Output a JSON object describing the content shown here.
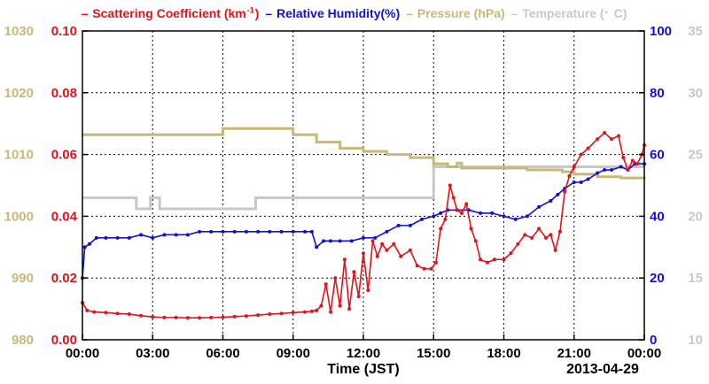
{
  "legend": [
    {
      "label_main": "Scattering Coefficient (km",
      "label_sup": "-1",
      "label_end": ")",
      "color": "#e8101a"
    },
    {
      "label_main": "Relative Humidity(%)",
      "label_sup": "",
      "label_end": "",
      "color": "#1010d8"
    },
    {
      "label_main": "Pressure (hPa)",
      "label_sup": "",
      "label_end": "",
      "color": "#c8b878"
    },
    {
      "label_main": "Temperature (",
      "label_sup": "。",
      "label_end": "C)",
      "color": "#c8c8c8"
    }
  ],
  "colors": {
    "scattering": "#e8101a",
    "humidity": "#1010d8",
    "pressure": "#c8b878",
    "temperature": "#c8c8c8"
  },
  "chart_data": {
    "type": "line",
    "xlabel": "Time (JST)",
    "date_label": "2013-04-29",
    "x_tick_labels": [
      "00:00",
      "03:00",
      "06:00",
      "09:00",
      "12:00",
      "15:00",
      "18:00",
      "21:00",
      "00:00"
    ],
    "xlim_hours": [
      0,
      24
    ],
    "grid": true,
    "axes": {
      "pressure": {
        "ylim": [
          980,
          1030
        ],
        "ticks": [
          "980",
          "990",
          "1000",
          "1010",
          "1020",
          "1030"
        ],
        "side": "left-outer"
      },
      "scattering": {
        "ylim": [
          0,
          0.1
        ],
        "ticks": [
          "0.00",
          "0.02",
          "0.04",
          "0.06",
          "0.08",
          "0.10"
        ],
        "side": "left-inner"
      },
      "humidity": {
        "ylim": [
          0,
          100
        ],
        "ticks": [
          "0",
          "20",
          "40",
          "60",
          "80",
          "100"
        ],
        "side": "right-inner"
      },
      "temperature": {
        "ylim": [
          10,
          35
        ],
        "ticks": [
          "10",
          "15",
          "20",
          "25",
          "30",
          "35"
        ],
        "side": "right-outer"
      }
    },
    "series": [
      {
        "name": "Scattering Coefficient (km-1)",
        "axis": "scattering",
        "style": "line-markers",
        "x": [
          0,
          0.2,
          0.5,
          1,
          1.5,
          2,
          2.5,
          3,
          3.5,
          4,
          4.5,
          5,
          5.5,
          6,
          6.5,
          7,
          7.5,
          8,
          8.5,
          9,
          9.5,
          9.8,
          10,
          10.2,
          10.4,
          10.6,
          10.8,
          11,
          11.2,
          11.4,
          11.6,
          11.8,
          12,
          12.2,
          12.4,
          12.6,
          12.8,
          13,
          13.3,
          13.6,
          14,
          14.3,
          14.6,
          14.9,
          15.1,
          15.3,
          15.5,
          15.7,
          15.85,
          16,
          16.2,
          16.4,
          16.6,
          16.8,
          17,
          17.3,
          17.6,
          18,
          18.3,
          18.6,
          18.9,
          19.2,
          19.5,
          19.8,
          20,
          20.2,
          20.4,
          20.6,
          20.8,
          21,
          21.3,
          21.6,
          22,
          22.3,
          22.6,
          22.9,
          23.1,
          23.3,
          23.5,
          23.7,
          23.9,
          24
        ],
        "y": [
          0.012,
          0.0095,
          0.009,
          0.0088,
          0.0085,
          0.0083,
          0.0078,
          0.0074,
          0.0072,
          0.0072,
          0.0071,
          0.0071,
          0.0072,
          0.0073,
          0.0075,
          0.0077,
          0.008,
          0.0083,
          0.0085,
          0.0088,
          0.009,
          0.0092,
          0.0095,
          0.011,
          0.018,
          0.009,
          0.02,
          0.011,
          0.026,
          0.01,
          0.022,
          0.014,
          0.028,
          0.016,
          0.032,
          0.027,
          0.031,
          0.029,
          0.031,
          0.027,
          0.029,
          0.024,
          0.023,
          0.023,
          0.025,
          0.036,
          0.039,
          0.05,
          0.046,
          0.042,
          0.041,
          0.044,
          0.036,
          0.032,
          0.026,
          0.025,
          0.026,
          0.026,
          0.028,
          0.031,
          0.034,
          0.033,
          0.036,
          0.033,
          0.034,
          0.029,
          0.035,
          0.048,
          0.053,
          0.056,
          0.06,
          0.062,
          0.065,
          0.067,
          0.065,
          0.066,
          0.059,
          0.055,
          0.058,
          0.057,
          0.06,
          0.063
        ]
      },
      {
        "name": "Relative Humidity(%)",
        "axis": "humidity",
        "style": "line-markers",
        "x": [
          0,
          0.1,
          0.3,
          0.6,
          1,
          1.5,
          2,
          2.5,
          3,
          3.5,
          4,
          4.5,
          5,
          5.5,
          6,
          6.5,
          7,
          7.5,
          8,
          8.5,
          9,
          9.5,
          9.8,
          10,
          10.3,
          10.6,
          11,
          11.5,
          12,
          12.5,
          13,
          13.5,
          14,
          14.5,
          15,
          15.3,
          15.6,
          16,
          16.5,
          17,
          17.5,
          18,
          18.5,
          19,
          19.5,
          20,
          20.3,
          20.6,
          21,
          21.3,
          21.6,
          22,
          22.3,
          22.6,
          23,
          23.3,
          23.6,
          24
        ],
        "y": [
          20,
          30,
          31,
          33,
          33,
          33,
          33,
          34,
          33,
          34,
          34,
          34,
          35,
          35,
          35,
          35,
          35,
          35,
          35,
          35,
          35,
          35,
          35,
          30,
          32,
          32,
          32,
          32,
          33,
          33,
          35,
          37,
          37,
          39,
          40,
          41,
          42,
          42,
          42,
          41,
          41,
          40,
          39,
          40,
          43,
          45,
          47,
          49,
          51,
          51,
          52,
          54,
          55,
          55,
          56,
          55,
          57,
          57
        ]
      },
      {
        "name": "Pressure (hPa)",
        "axis": "pressure",
        "style": "step",
        "x": [
          0,
          1,
          2,
          3,
          4,
          5,
          5.9,
          6,
          7,
          8,
          9,
          10,
          11,
          12,
          13,
          14,
          15,
          15.6,
          16,
          16.2,
          17,
          18,
          19,
          20,
          20.5,
          21,
          22,
          23,
          24
        ],
        "y": [
          1013.2,
          1013.2,
          1013.2,
          1013.2,
          1013.2,
          1013.2,
          1013.2,
          1014.2,
          1014.2,
          1014.2,
          1013.2,
          1012,
          1011,
          1010.5,
          1010,
          1009.5,
          1008.5,
          1008,
          1008.6,
          1007.8,
          1007.8,
          1007.8,
          1007.5,
          1007.5,
          1007.2,
          1006.8,
          1006.4,
          1006.2,
          1006
        ]
      },
      {
        "name": "Temperature (C)",
        "axis": "temperature",
        "style": "step",
        "x": [
          0,
          1,
          2,
          2.3,
          2.9,
          3.3,
          4,
          5,
          6,
          7,
          7.4,
          8,
          9,
          10,
          11,
          12,
          13,
          14,
          14.9,
          15,
          16,
          17,
          18,
          19,
          20,
          20.5,
          21,
          22,
          23,
          24
        ],
        "y": [
          21.5,
          21.5,
          21.5,
          20.6,
          21.5,
          20.6,
          20.6,
          20.6,
          20.6,
          20.6,
          21.5,
          21.5,
          21.5,
          21.5,
          21.5,
          21.5,
          21.5,
          21.5,
          21.5,
          24,
          24,
          24,
          24,
          24,
          24,
          24,
          24,
          24,
          24,
          24
        ]
      }
    ]
  }
}
